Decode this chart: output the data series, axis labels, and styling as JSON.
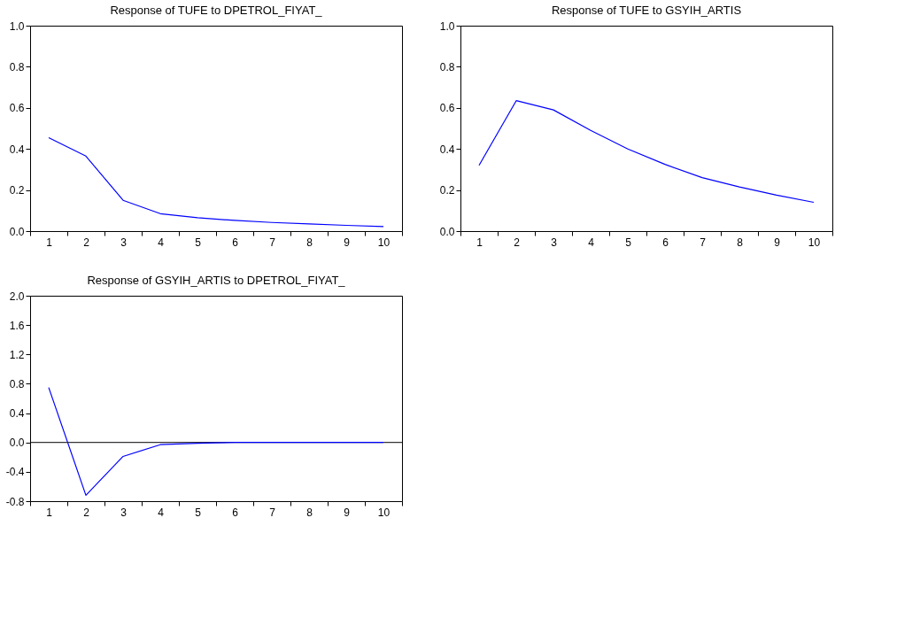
{
  "chart_data": [
    {
      "type": "line",
      "title": "Response of TUFE to DPETROL_FIYAT_",
      "categories": [
        "1",
        "2",
        "3",
        "4",
        "5",
        "6",
        "7",
        "8",
        "9",
        "10"
      ],
      "series": [
        {
          "color": "#0000ff",
          "values": [
            0.455,
            0.365,
            0.15,
            0.085,
            0.065,
            0.052,
            0.042,
            0.035,
            0.028,
            0.022
          ]
        }
      ],
      "ylim": [
        0,
        1
      ],
      "yticks": [
        {
          "value": 0,
          "label": "0.0"
        },
        0.2,
        0.4,
        0.6,
        0.8,
        {
          "value": 1,
          "label": "1.0"
        }
      ],
      "grid": false,
      "marker": "none",
      "line_style": "solid"
    },
    {
      "type": "line",
      "title": "Response of TUFE to GSYIH_ARTIS",
      "categories": [
        "1",
        "2",
        "3",
        "4",
        "5",
        "6",
        "7",
        "8",
        "9",
        "10"
      ],
      "series": [
        {
          "color": "#0000ff",
          "values": [
            0.32,
            0.635,
            0.59,
            0.49,
            0.4,
            0.325,
            0.26,
            0.215,
            0.175,
            0.14
          ]
        }
      ],
      "ylim": [
        0,
        1
      ],
      "yticks": [
        {
          "value": 0,
          "label": "0.0"
        },
        0.2,
        0.4,
        0.6,
        0.8,
        {
          "value": 1,
          "label": "1.0"
        }
      ],
      "grid": false,
      "marker": "none",
      "line_style": "solid"
    },
    {
      "type": "line",
      "title": "Response of GSYIH_ARTIS to DPETROL_FIYAT_",
      "categories": [
        "1",
        "2",
        "3",
        "4",
        "5",
        "6",
        "7",
        "8",
        "9",
        "10"
      ],
      "series": [
        {
          "color": "#0000ff",
          "values": [
            0.75,
            -0.72,
            -0.19,
            -0.03,
            -0.01,
            0,
            0,
            0,
            0,
            0
          ]
        }
      ],
      "ylim": [
        -0.8,
        2
      ],
      "yticks": [
        -0.8,
        -0.4,
        {
          "value": 0,
          "label": "0.0"
        },
        0.4,
        0.8,
        1.2,
        1.6,
        {
          "value": 2,
          "label": "2.0"
        }
      ],
      "grid": false,
      "marker": "none",
      "line_style": "solid",
      "ref_lines": [
        {
          "axis": "y",
          "value": 0,
          "color": "#000000"
        }
      ]
    }
  ]
}
